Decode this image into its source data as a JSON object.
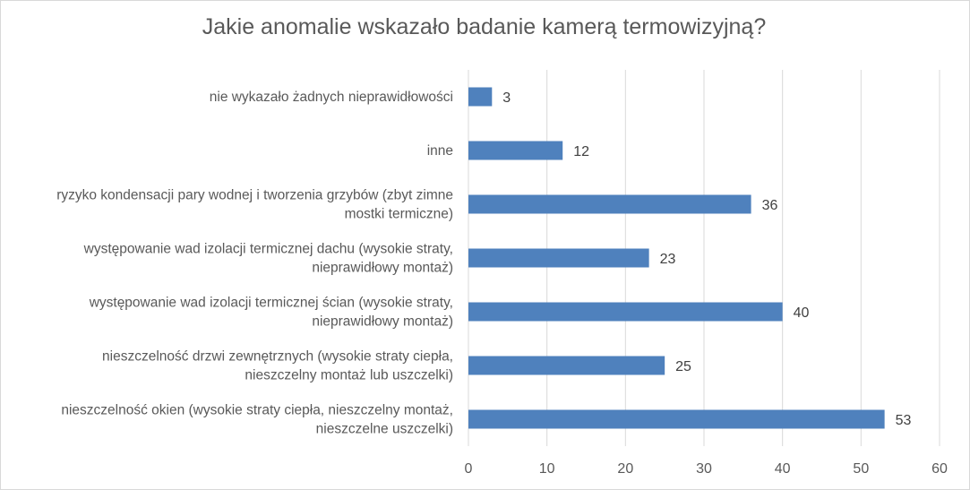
{
  "chart_data": {
    "type": "bar",
    "orientation": "horizontal",
    "title": "Jakie anomalie wskazało badanie kamerą termowizyjną?",
    "categories": [
      [
        "nie wykazało żadnych nieprawidłowości"
      ],
      [
        "inne"
      ],
      [
        "ryzyko kondensacji pary wodnej i tworzenia grzybów (zbyt zimne",
        "mostki termiczne)"
      ],
      [
        "występowanie wad izolacji termicznej dachu (wysokie straty,",
        "nieprawidłowy montaż)"
      ],
      [
        "występowanie wad izolacji termicznej ścian (wysokie straty,",
        "nieprawidłowy montaż)"
      ],
      [
        "nieszczelność drzwi zewnętrznych (wysokie straty ciepła,",
        "nieszczelny montaż lub uszczelki)"
      ],
      [
        "nieszczelność okien (wysokie straty ciepła, nieszczelny montaż,",
        "nieszczelne uszczelki)"
      ]
    ],
    "values": [
      3,
      12,
      36,
      23,
      40,
      25,
      53
    ],
    "xlim": [
      0,
      60
    ],
    "xticks": [
      0,
      10,
      20,
      30,
      40,
      50,
      60
    ],
    "grid": true,
    "legend": "none",
    "bar_color": "#4f81bd",
    "grid_color": "#d9d9d9"
  }
}
